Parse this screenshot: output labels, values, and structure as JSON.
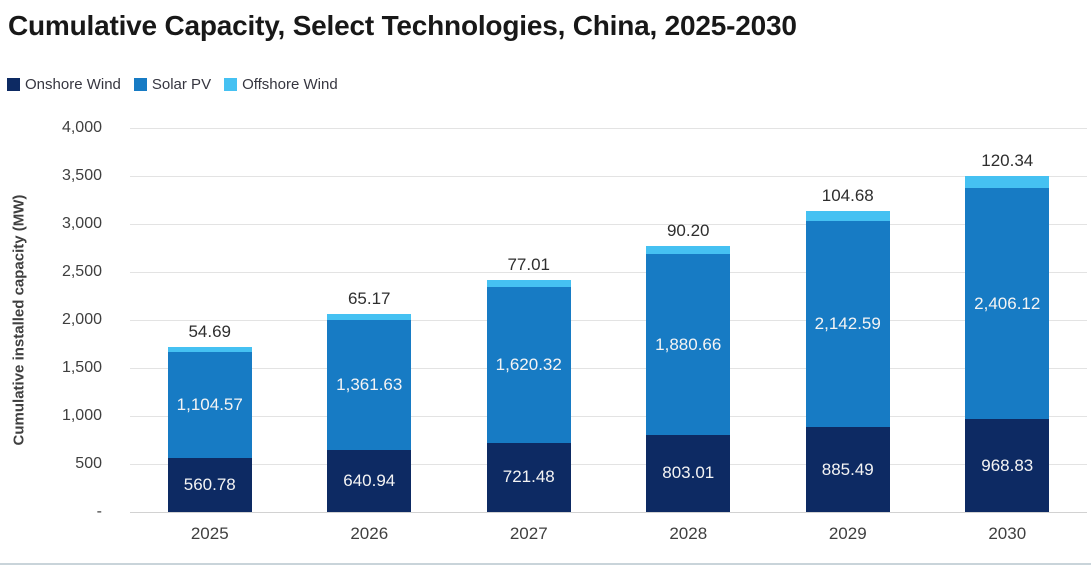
{
  "title": "Cumulative Capacity, Select Technologies, China, 2025-2030",
  "legend": {
    "items": [
      {
        "label": "Onshore Wind",
        "color": "#0d2a63"
      },
      {
        "label": "Solar PV",
        "color": "#177bc4"
      },
      {
        "label": "Offshore Wind",
        "color": "#45c1f2"
      }
    ]
  },
  "y_axis": {
    "title": "Cumulative installed capacity (MW)",
    "ticks": [
      "4,000",
      "3,500",
      "3,000",
      "2,500",
      "2,000",
      "1,500",
      "1,000",
      "500",
      "-"
    ]
  },
  "chart_data": {
    "type": "bar",
    "stacked": true,
    "title": "Cumulative Capacity, Select Technologies, China, 2025-2030",
    "ylabel": "Cumulative installed capacity (MW)",
    "ylim": [
      0,
      4000
    ],
    "grid": true,
    "legend_position": "top-left",
    "categories": [
      "2025",
      "2026",
      "2027",
      "2028",
      "2029",
      "2030"
    ],
    "series": [
      {
        "name": "Onshore Wind",
        "color": "#0d2a63",
        "label_position": "inside",
        "values": [
          560.78,
          640.94,
          721.48,
          803.01,
          885.49,
          968.83
        ]
      },
      {
        "name": "Solar PV",
        "color": "#177bc4",
        "label_position": "inside",
        "values": [
          1104.57,
          1361.63,
          1620.32,
          1880.66,
          2142.59,
          2406.12
        ]
      },
      {
        "name": "Offshore Wind",
        "color": "#45c1f2",
        "label_position": "above",
        "values": [
          54.69,
          65.17,
          77.01,
          90.2,
          104.68,
          120.34
        ]
      }
    ]
  }
}
